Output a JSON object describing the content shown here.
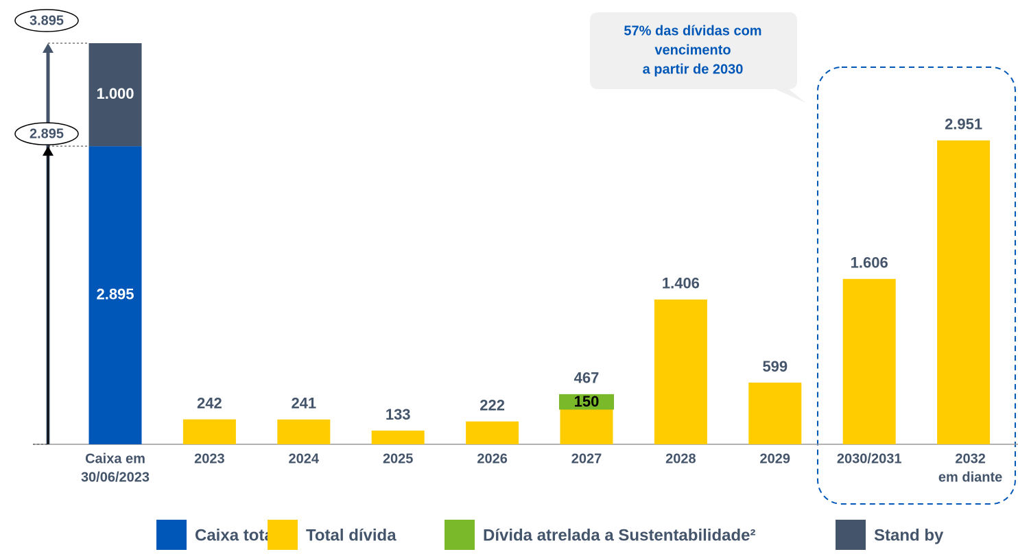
{
  "chart_data": {
    "type": "bar",
    "categories": [
      [
        "Caixa em",
        "30/06/2023"
      ],
      "2023",
      "2024",
      "2025",
      "2026",
      "2027",
      "2028",
      "2029",
      "2030/2031",
      [
        "2032",
        "em diante"
      ]
    ],
    "series": [
      {
        "name": "Caixa total",
        "color": "#0057b8",
        "values": [
          2895,
          null,
          null,
          null,
          null,
          null,
          null,
          null,
          null,
          null
        ],
        "value_labels": [
          "2.895",
          null,
          null,
          null,
          null,
          null,
          null,
          null,
          null,
          null
        ]
      },
      {
        "name": "Total dívida",
        "color": "#ffcc00",
        "values": [
          null,
          242,
          241,
          133,
          222,
          467,
          1406,
          599,
          1606,
          2951
        ],
        "value_labels": [
          null,
          "242",
          "241",
          "133",
          "222",
          "467",
          "1.406",
          "599",
          "1.606",
          "2.951"
        ]
      },
      {
        "name": "Dívida atrelada a Sustentabilidade²",
        "color": "#7ab929",
        "values": [
          null,
          null,
          null,
          null,
          null,
          150,
          null,
          null,
          null,
          null
        ],
        "value_labels": [
          null,
          null,
          null,
          null,
          null,
          "150",
          null,
          null,
          null,
          null
        ]
      },
      {
        "name": "Stand by",
        "color": "#44546a",
        "values": [
          1000,
          null,
          null,
          null,
          null,
          null,
          null,
          null,
          null,
          null
        ],
        "value_labels": [
          "1.000",
          null,
          null,
          null,
          null,
          null,
          null,
          null,
          null,
          null
        ]
      }
    ],
    "ylim": [
      0,
      3900
    ],
    "annotations": [
      {
        "value": 3895,
        "label": "3.895"
      },
      {
        "value": 2895,
        "label": "2.895"
      }
    ],
    "callout": [
      "57% das dívidas com",
      "vencimento",
      "a partir de 2030"
    ]
  }
}
